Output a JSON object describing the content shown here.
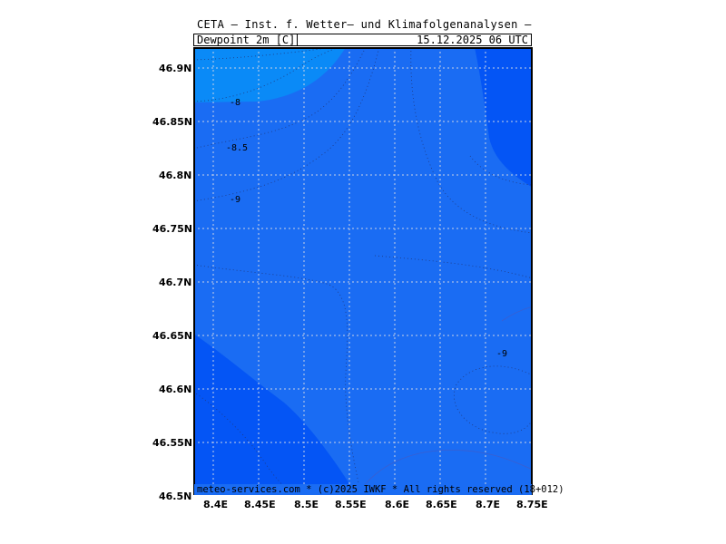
{
  "header": {
    "title": "CETA — Inst. f. Wetter— und Klimafolgenanalysen —",
    "parameter": "Dewpoint 2m [C]",
    "datetime": "15.12.2025 06 UTC"
  },
  "footer": {
    "credit": "meteo-services.com * (c)2025 IWKF * All rights reserved (18+012)"
  },
  "map": {
    "lat_labels": [
      "46.9N",
      "46.85N",
      "46.8N",
      "46.75N",
      "46.7N",
      "46.65N",
      "46.6N",
      "46.55N",
      "46.5N"
    ],
    "lon_labels": [
      "8.4E",
      "8.45E",
      "8.5E",
      "8.55E",
      "8.6E",
      "8.65E",
      "8.7E",
      "8.75E"
    ],
    "contour_labels": [
      "-8",
      "-8.5",
      "-9",
      "-9"
    ],
    "colors": {
      "main_fill": "#1a6cf3",
      "light_fill": "#0a8af7",
      "dark_fill": "#0455f5",
      "grid": "#bfc9dc"
    }
  }
}
